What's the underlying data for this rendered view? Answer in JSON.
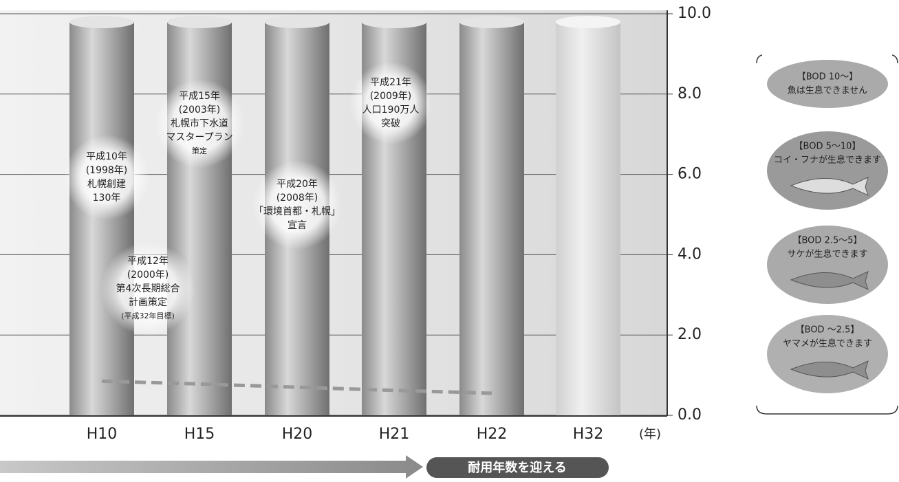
{
  "chart_data": {
    "type": "line",
    "categories": [
      "H10",
      "H15",
      "H20",
      "H21",
      "H22",
      "H32"
    ],
    "x_unit": "(年)",
    "series": [
      {
        "color": "#999999",
        "values": [
          0.85,
          0.78,
          0.7,
          0.62,
          0.55,
          null
        ]
      }
    ],
    "ylim": [
      0,
      10
    ],
    "yticks": [
      {
        "value": 0,
        "label": "0.0"
      },
      {
        "value": 2,
        "label": "2.0"
      },
      {
        "value": 4,
        "label": "4.0"
      },
      {
        "value": 6,
        "label": "6.0"
      },
      {
        "value": 8,
        "label": "8.0"
      },
      {
        "value": 10,
        "label": "10.0"
      }
    ],
    "grid": true,
    "annotations": [
      [
        "平成10年",
        "(1998年)",
        "札幌創建",
        "130年"
      ],
      [
        "平成12年",
        "(2000年)",
        "第4次長期総合",
        "計画策定",
        "(平成32年目標)"
      ],
      [
        "平成15年",
        "(2003年)",
        "札幌市下水道",
        "マスタープラン",
        "策定"
      ],
      [
        "平成20年",
        "(2008年)",
        "「環境首都・札幌」",
        "宣言"
      ],
      [
        "平成21年",
        "(2009年)",
        "人口190万人",
        "突破"
      ]
    ],
    "legend_items": [
      [
        "【BOD 10～】",
        "魚は生息できません"
      ],
      [
        "【BOD 5～10】",
        "コイ・フナが生息できます"
      ],
      [
        "【BOD 2.5～5】",
        "サケが生息できます"
      ],
      [
        "【BOD ～2.5】",
        "ヤマメが生息できます"
      ]
    ],
    "bottom_note": "耐用年数を迎える"
  }
}
